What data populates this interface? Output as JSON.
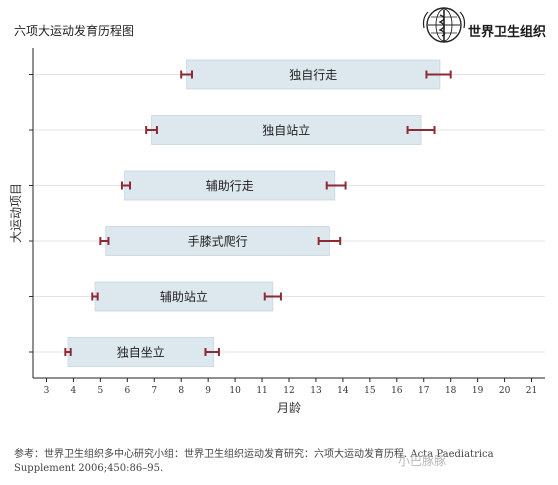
{
  "header": {
    "title": "六项大运动发育历程图",
    "org_name": "世界卫生组织"
  },
  "chart_data": {
    "type": "range-bar",
    "ylabel": "大运动项目",
    "xlabel": "月龄",
    "xlim": [
      2.5,
      21.5
    ],
    "xticks": [
      3,
      4,
      5,
      6,
      7,
      8,
      9,
      10,
      11,
      12,
      13,
      14,
      15,
      16,
      17,
      18,
      19,
      20,
      21
    ],
    "grid": true,
    "items": [
      {
        "label": "独自行走",
        "start": 8.2,
        "end": 17.6,
        "ci_low": [
          8.0,
          8.4
        ],
        "ci_high": [
          17.1,
          18.0
        ]
      },
      {
        "label": "独自站立",
        "start": 6.9,
        "end": 16.9,
        "ci_low": [
          6.7,
          7.1
        ],
        "ci_high": [
          16.4,
          17.4
        ]
      },
      {
        "label": "辅助行走",
        "start": 5.9,
        "end": 13.7,
        "ci_low": [
          5.8,
          6.1
        ],
        "ci_high": [
          13.4,
          14.1
        ]
      },
      {
        "label": "手膝式爬行",
        "start": 5.2,
        "end": 13.5,
        "ci_low": [
          5.0,
          5.3
        ],
        "ci_high": [
          13.1,
          13.9
        ]
      },
      {
        "label": "辅助站立",
        "start": 4.8,
        "end": 11.4,
        "ci_low": [
          4.7,
          4.9
        ],
        "ci_high": [
          11.1,
          11.7
        ]
      },
      {
        "label": "独自坐立",
        "start": 3.8,
        "end": 9.2,
        "ci_low": [
          3.7,
          3.9
        ],
        "ci_high": [
          8.9,
          9.4
        ]
      }
    ],
    "colors": {
      "bar": "#dde7ee",
      "bar_border": "#c9d6e0",
      "error": "#8e2a35",
      "grid": "#e3e3e3"
    }
  },
  "reference": {
    "line1": "参考：世界卫生组织多中心研究小组：世界卫生组织运动发育研究：六项大运动发育历程. Acta Paediatrica",
    "line2": "Supplement 2006;450:86–95."
  },
  "watermark": "小巴豚豚"
}
